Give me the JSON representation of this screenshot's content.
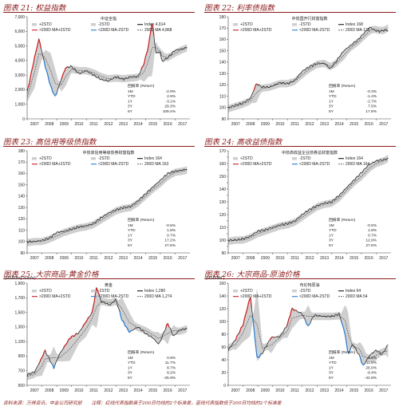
{
  "footer": {
    "source": "资料来源：万得资讯，中金公司研究部",
    "note": "注释：红线代表指数高于200日均线的2个标准差，蓝线代表指数低于200日均线的2个标准差"
  },
  "colors": {
    "index": "#1a1a1a",
    "ma": "#555555",
    "upper": "#cc1f1f",
    "lower": "#2a7fd4",
    "band": "#cfcfcf",
    "title": "#8b1a1a"
  },
  "chart_data": [
    {
      "type": "line",
      "title": "图表 21: 权益指数",
      "subtitle": "中证全指",
      "unit": "",
      "x_labels": [
        "2007",
        "2008",
        "2009",
        "2010",
        "2011",
        "2012",
        "2013",
        "2014",
        "2015",
        "2016",
        "2017"
      ],
      "ylim": [
        0,
        7000
      ],
      "yticks": [
        0,
        1000,
        2000,
        3000,
        4000,
        5000,
        6000,
        7000
      ],
      "ytick_labels": [
        "0",
        "1,000",
        "2,000",
        "3,000",
        "4,000",
        "5,000",
        "6,000",
        "7,000"
      ],
      "legend": [
        "+2STD",
        "-2STD",
        "Index 4,914",
        ">200D MA+2STD",
        "<200D MA-2STD",
        "200D MA 4,868"
      ],
      "returns_title": "回报率 (Return)",
      "returns": [
        [
          "1M",
          "-2.9%"
        ],
        [
          "YTD",
          "2.6%"
        ],
        [
          "1Y",
          "-3.1%"
        ],
        [
          "3Y",
          "29.3%"
        ],
        [
          "5Y",
          "109.4%"
        ]
      ],
      "x": [
        2007.0,
        2007.5,
        2007.8,
        2008.2,
        2008.6,
        2008.9,
        2009.3,
        2009.6,
        2010.0,
        2010.5,
        2011.0,
        2011.5,
        2012.0,
        2012.5,
        2013.0,
        2013.5,
        2014.0,
        2014.5,
        2014.9,
        2015.2,
        2015.45,
        2015.7,
        2016.0,
        2016.1,
        2016.5,
        2017.0,
        2017.5,
        2017.8
      ],
      "index": [
        1800,
        4200,
        5500,
        3700,
        2200,
        1500,
        2700,
        3500,
        3600,
        3100,
        3300,
        3000,
        2700,
        2600,
        2900,
        2700,
        2900,
        2900,
        3800,
        5000,
        6700,
        4500,
        4600,
        3900,
        4200,
        4700,
        4800,
        4914
      ],
      "ma": [
        1500,
        3200,
        4500,
        4200,
        3300,
        2400,
        2300,
        2900,
        3400,
        3300,
        3300,
        3150,
        2900,
        2750,
        2800,
        2750,
        2800,
        2850,
        3200,
        4000,
        4900,
        4900,
        4600,
        4300,
        4200,
        4500,
        4750,
        4868
      ]
    },
    {
      "type": "line",
      "title": "图表 22: 利率债指数",
      "subtitle": "中债国开行财富指数",
      "unit": "",
      "x_labels": [
        "2007",
        "2008",
        "2009",
        "2010",
        "2011",
        "2012",
        "2013",
        "2014",
        "2015",
        "2016",
        "2017"
      ],
      "ylim": [
        90,
        180
      ],
      "yticks": [
        90,
        100,
        110,
        120,
        130,
        140,
        150,
        160,
        170,
        180
      ],
      "ytick_labels": [
        "90",
        "100",
        "110",
        "120",
        "130",
        "140",
        "150",
        "160",
        "170",
        "180"
      ],
      "legend": [
        "+2STD",
        "-2STD",
        "Index 168",
        ">200D MA+2STD",
        "<200D MA-2STD",
        "200D MA 170"
      ],
      "returns_title": "回报率 (Return)",
      "returns": [
        [
          "1M",
          "-0.3%"
        ],
        [
          "YTD",
          "-1.4%"
        ],
        [
          "1Y",
          "-2.7%"
        ],
        [
          "3Y",
          "7.5%"
        ],
        [
          "5Y",
          "17.8%"
        ]
      ],
      "x": [
        2007.0,
        2007.5,
        2008.0,
        2008.5,
        2008.9,
        2009.3,
        2009.8,
        2010.5,
        2011.0,
        2011.5,
        2012.0,
        2012.5,
        2013.0,
        2013.5,
        2013.9,
        2014.3,
        2014.8,
        2015.3,
        2015.8,
        2016.2,
        2016.6,
        2016.9,
        2017.2,
        2017.5,
        2017.8
      ],
      "index": [
        100,
        102,
        104,
        108,
        121,
        118,
        118,
        122,
        121,
        124,
        132,
        136,
        139,
        139,
        134,
        141,
        150,
        155,
        160,
        166,
        171,
        168,
        167,
        168,
        168
      ],
      "ma": [
        99,
        101,
        103,
        106,
        113,
        117,
        118,
        121,
        121,
        123,
        129,
        134,
        138,
        139,
        136,
        139,
        146,
        153,
        158,
        163,
        168,
        169,
        168,
        168,
        170
      ]
    },
    {
      "type": "line",
      "title": "图表 23: 高信用等级债指数",
      "subtitle": "中债高信用等级债券财富指数",
      "unit": "",
      "x_labels": [
        "2007",
        "2008",
        "2009",
        "2010",
        "2011",
        "2012",
        "2013",
        "2014",
        "2015",
        "2016",
        "2017"
      ],
      "ylim": [
        90,
        180
      ],
      "yticks": [
        90,
        100,
        110,
        120,
        130,
        140,
        150,
        160,
        170,
        180
      ],
      "ytick_labels": [
        "90",
        "100",
        "110",
        "120",
        "130",
        "140",
        "150",
        "160",
        "170",
        "180"
      ],
      "legend": [
        "+2STD",
        "-2STD",
        "Index 164",
        ">200D MA+2STD",
        "<200D MA-2STD",
        "200D MA 163"
      ],
      "returns_title": "回报率 (Return)",
      "returns": [
        [
          "1M",
          "-0.5%"
        ],
        [
          "YTD",
          "1.8%"
        ],
        [
          "1Y",
          "0.7%"
        ],
        [
          "3Y",
          "17.2%"
        ],
        [
          "5Y",
          "27.6%"
        ]
      ],
      "x": [
        2007.0,
        2007.5,
        2008.0,
        2008.5,
        2009.0,
        2009.5,
        2010.0,
        2010.5,
        2011.0,
        2011.5,
        2012.0,
        2012.5,
        2013.0,
        2013.5,
        2014.0,
        2014.5,
        2015.0,
        2015.5,
        2016.0,
        2016.5,
        2017.0,
        2017.5,
        2017.8
      ],
      "index": [
        100,
        100,
        101,
        103,
        108,
        109,
        111,
        113,
        114,
        116,
        121,
        125,
        128,
        130,
        131,
        136,
        142,
        148,
        154,
        160,
        162,
        163,
        164
      ],
      "ma": [
        99,
        100,
        100,
        102,
        105,
        108,
        110,
        112,
        113,
        115,
        119,
        123,
        127,
        129,
        130,
        134,
        140,
        146,
        151,
        157,
        161,
        162,
        163
      ]
    },
    {
      "type": "line",
      "title": "图表 24: 高收益债指数",
      "subtitle": "中债高收益企业债券总财富指数",
      "unit": "",
      "x_labels": [
        "2007",
        "2008",
        "2009",
        "2010",
        "2011",
        "2012",
        "2013",
        "2014",
        "2015",
        "2016",
        "2017"
      ],
      "ylim": [
        90,
        170
      ],
      "yticks": [
        90,
        95,
        100,
        105,
        110,
        115,
        120,
        125,
        130,
        135,
        140,
        145,
        150,
        155,
        160,
        165,
        170
      ],
      "ytick_labels": [
        "90",
        "95",
        "100",
        "105",
        "110",
        "115",
        "120",
        "125",
        "130",
        "135",
        "140",
        "145",
        "150",
        "155",
        "160",
        "165",
        "170"
      ],
      "legend": [
        "+2STD",
        "-2STD",
        "Index 164",
        ">200D MA+2STD",
        "<200D MA-2STD",
        "200D MA 164"
      ],
      "returns_title": "回报率 (Return)",
      "returns": [
        [
          "1M",
          "-0.5%"
        ],
        [
          "YTD",
          "1.8%"
        ],
        [
          "1Y",
          "0.7%"
        ],
        [
          "3Y",
          "12.9%"
        ],
        [
          "5Y",
          "27.6%"
        ]
      ],
      "x": [
        2007.0,
        2007.5,
        2008.0,
        2008.5,
        2009.0,
        2009.5,
        2010.0,
        2010.5,
        2011.0,
        2011.5,
        2012.0,
        2012.5,
        2013.0,
        2013.5,
        2014.0,
        2014.5,
        2015.0,
        2015.5,
        2016.0,
        2016.5,
        2017.0,
        2017.5,
        2017.8
      ],
      "index": [
        100,
        100,
        101,
        103,
        107,
        108,
        110,
        112,
        113,
        115,
        120,
        124,
        127,
        129,
        130,
        135,
        141,
        147,
        153,
        159,
        162,
        163,
        164
      ],
      "ma": [
        99,
        100,
        100,
        102,
        105,
        107,
        109,
        111,
        112,
        114,
        118,
        122,
        126,
        128,
        129,
        133,
        139,
        145,
        150,
        156,
        160,
        162,
        164
      ]
    },
    {
      "type": "line",
      "title": "图表 25: 大宗商品-黄金价格",
      "subtitle": "黄金",
      "unit": "(USD/troy ounce)",
      "x_labels": [
        "2007",
        "2008",
        "2009",
        "2010",
        "2011",
        "2012",
        "2013",
        "2014",
        "2015",
        "2016",
        "2017"
      ],
      "ylim": [
        500,
        1900
      ],
      "yticks": [
        500,
        700,
        900,
        1100,
        1300,
        1500,
        1700,
        1900
      ],
      "ytick_labels": [
        "500",
        "700",
        "900",
        "1,100",
        "1,300",
        "1,500",
        "1,700",
        "1,900"
      ],
      "legend": [
        "+2STD",
        "-2STD",
        "Index 1,280",
        ">200D MA+2STD",
        "<200D MA-2STD",
        "200D MA 1,274"
      ],
      "returns_title": "回报率 (Return)",
      "returns": [
        [
          "1M",
          "0.8%"
        ],
        [
          "YTD",
          "11.7%"
        ],
        [
          "1Y",
          "8.7%"
        ],
        [
          "3Y",
          "8.2%"
        ],
        [
          "5Y",
          "-25.8%"
        ]
      ],
      "x": [
        2007.0,
        2007.5,
        2008.0,
        2008.2,
        2008.8,
        2009.2,
        2009.9,
        2010.5,
        2011.0,
        2011.4,
        2011.7,
        2012.0,
        2012.6,
        2013.0,
        2013.4,
        2013.9,
        2014.5,
        2015.0,
        2015.5,
        2015.9,
        2016.5,
        2016.9,
        2017.3,
        2017.8
      ],
      "index": [
        640,
        680,
        880,
        980,
        740,
        930,
        1150,
        1220,
        1380,
        1500,
        1850,
        1650,
        1600,
        1680,
        1400,
        1230,
        1300,
        1210,
        1150,
        1060,
        1350,
        1170,
        1260,
        1280
      ],
      "ma": [
        620,
        650,
        760,
        860,
        880,
        880,
        1000,
        1150,
        1280,
        1420,
        1580,
        1650,
        1630,
        1650,
        1550,
        1360,
        1290,
        1250,
        1190,
        1140,
        1210,
        1250,
        1240,
        1274
      ]
    },
    {
      "type": "line",
      "title": "图表 26: 大宗商品-原油价格",
      "subtitle": "布伦特原油",
      "unit": "(USD/bbl.)",
      "x_labels": [
        "2007",
        "2008",
        "2009",
        "2010",
        "2011",
        "2012",
        "2013",
        "2014",
        "2015",
        "2016",
        "2017"
      ],
      "ylim": [
        0,
        160
      ],
      "yticks": [
        0,
        20,
        40,
        60,
        80,
        100,
        120,
        140,
        160
      ],
      "ytick_labels": [
        "0",
        "20",
        "40",
        "60",
        "80",
        "100",
        "120",
        "140",
        "160"
      ],
      "legend": [
        "+2STD",
        "-2STD",
        "Index 64",
        ">200D MA+2STD",
        "<200D MA-2STD",
        "200D MA 54"
      ],
      "returns_title": "回报率 (Return)",
      "returns": [
        [
          "1M",
          "3.6%"
        ],
        [
          "YTD",
          "11.9%"
        ],
        [
          "1Y",
          "26.0%"
        ],
        [
          "3Y",
          "-9.4%"
        ],
        [
          "5Y",
          "-42.8%"
        ]
      ],
      "x": [
        2007.0,
        2007.5,
        2008.0,
        2008.5,
        2008.95,
        2009.3,
        2009.9,
        2010.5,
        2011.0,
        2011.3,
        2012.0,
        2012.4,
        2012.8,
        2013.5,
        2014.0,
        2014.5,
        2014.9,
        2015.1,
        2015.4,
        2015.9,
        2016.1,
        2016.6,
        2017.0,
        2017.4,
        2017.8
      ],
      "index": [
        55,
        72,
        95,
        140,
        42,
        50,
        75,
        76,
        95,
        120,
        112,
        92,
        110,
        108,
        108,
        112,
        80,
        48,
        65,
        45,
        30,
        48,
        55,
        48,
        64
      ],
      "ma": [
        58,
        64,
        82,
        110,
        95,
        58,
        63,
        75,
        85,
        105,
        110,
        108,
        108,
        108,
        108,
        109,
        102,
        80,
        62,
        56,
        45,
        42,
        47,
        52,
        54
      ]
    }
  ]
}
